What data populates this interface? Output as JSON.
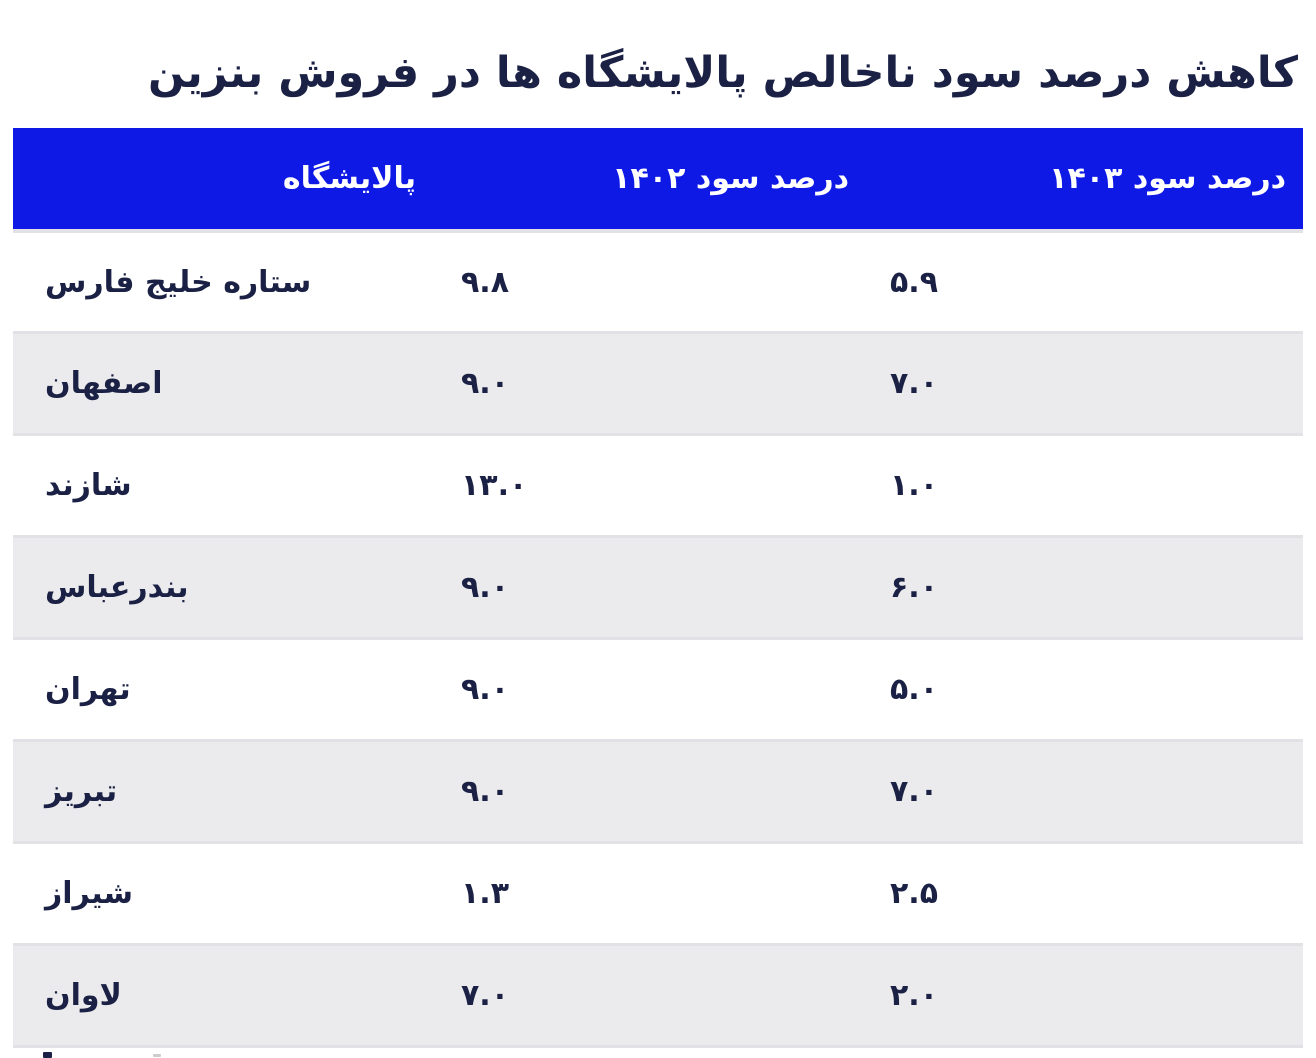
{
  "title": "کاهش درصد سود ناخالص پالایشگاه ها در فروش بنزین",
  "table": {
    "columns": [
      {
        "key": "refinery",
        "label": "پالایشگاه"
      },
      {
        "key": "profit_1402",
        "label": "درصد سود ۱۴۰۲"
      },
      {
        "key": "profit_1403",
        "label": "درصد سود ۱۴۰۳"
      }
    ],
    "rows": [
      {
        "refinery": "ستاره خلیج فارس",
        "profit_1402": "۹.۸",
        "profit_1403": "۵.۹"
      },
      {
        "refinery": "اصفهان",
        "profit_1402": "۹.۰",
        "profit_1403": "۷.۰"
      },
      {
        "refinery": "شازند",
        "profit_1402": "۱۳.۰",
        "profit_1403": "۱.۰"
      },
      {
        "refinery": "بندرعباس",
        "profit_1402": "۹.۰",
        "profit_1403": "۶.۰"
      },
      {
        "refinery": "تهران",
        "profit_1402": "۹.۰",
        "profit_1403": "۵.۰"
      },
      {
        "refinery": "تبریز",
        "profit_1402": "۹.۰",
        "profit_1403": "۷.۰"
      },
      {
        "refinery": "شیراز",
        "profit_1402": "۱.۳",
        "profit_1403": "۲.۵"
      },
      {
        "refinery": "لاوان",
        "profit_1402": "۷.۰",
        "profit_1403": "۲.۰"
      }
    ]
  },
  "colors": {
    "header_bg": "#0e19e6",
    "header_text": "#ffffff",
    "text": "#1b2144",
    "row_alt_bg": "#ebebed",
    "row_border": "#e2e2e6",
    "page_bg": "#ffffff"
  },
  "chart_data": {
    "type": "table",
    "title": "کاهش درصد سود ناخالص پالایشگاه ها در فروش بنزین",
    "categories": [
      "ستاره خلیج فارس",
      "اصفهان",
      "شازند",
      "بندرعباس",
      "تهران",
      "تبریز",
      "شیراز",
      "لاوان"
    ],
    "series": [
      {
        "name": "درصد سود ۱۴۰۲",
        "values": [
          9.8,
          9.0,
          13.0,
          9.0,
          9.0,
          9.0,
          1.3,
          7.0
        ]
      },
      {
        "name": "درصد سود ۱۴۰۳",
        "values": [
          5.9,
          7.0,
          1.0,
          6.0,
          5.0,
          7.0,
          2.5,
          2.0
        ]
      }
    ],
    "layout": {
      "direction": "rtl",
      "header_style": "solid-blue",
      "zebra_rows": true
    }
  }
}
